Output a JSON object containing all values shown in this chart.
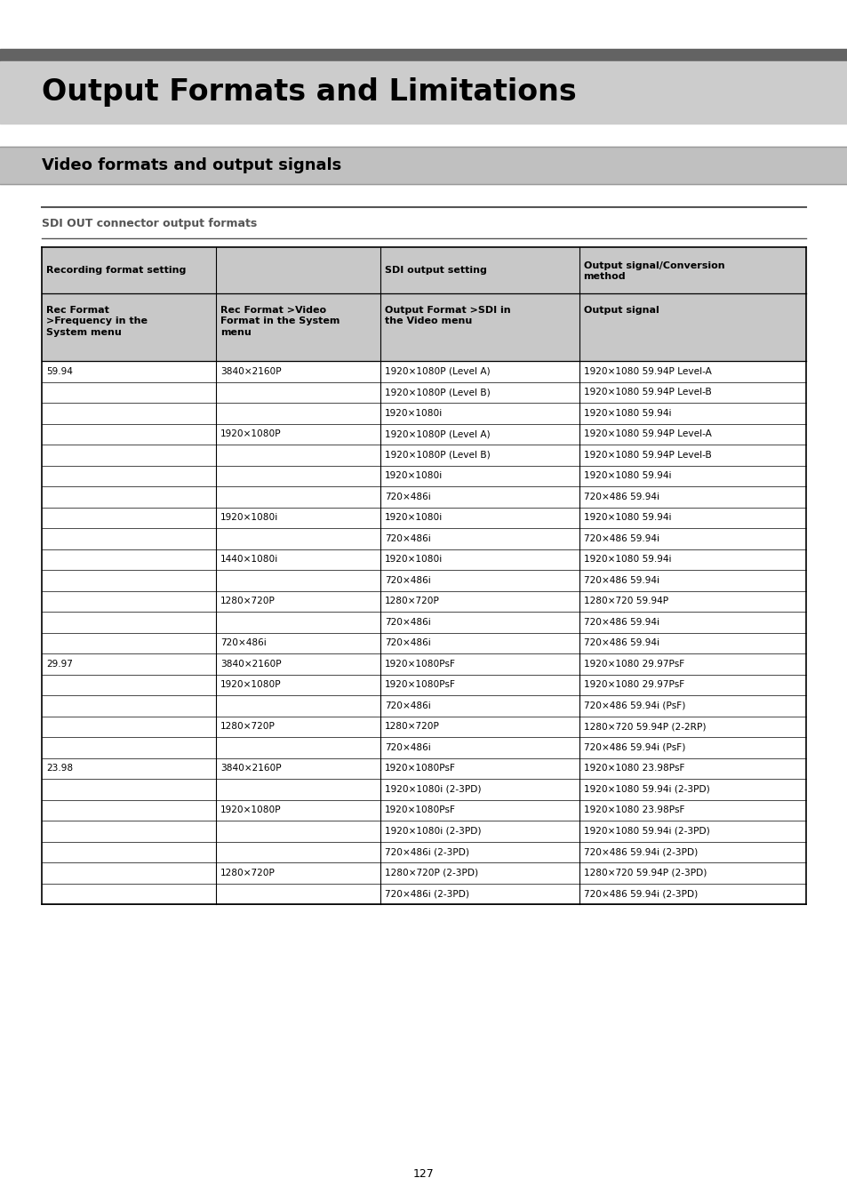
{
  "page_bg": "#ffffff",
  "title_top_bar_color": "#636363",
  "title_bar_bg": "#cccccc",
  "title_text": "Output Formats and Limitations",
  "title_fontsize": 24,
  "section_bar_bg": "#c0c0c0",
  "section_text": "Video formats and output signals",
  "section_fontsize": 13,
  "subsection_text": "SDI OUT connector output formats",
  "subsection_fontsize": 9,
  "table_header_bg": "#c8c8c8",
  "table_header1_row1": "Recording format setting",
  "table_header3_row1": "SDI output setting",
  "table_header4_row1": "Output signal/Conversion\nmethod",
  "table_header1_row2": "Rec Format\n>Frequency in the\nSystem menu",
  "table_header2_row2": "Rec Format >Video\nFormat in the System\nmenu",
  "table_header3_row2": "Output Format >SDI in\nthe Video menu",
  "table_header4_row2": "Output signal",
  "rows": [
    [
      "59.94",
      "3840×2160P",
      "1920×1080P (Level A)",
      "1920×1080 59.94P Level-A"
    ],
    [
      "",
      "",
      "1920×1080P (Level B)",
      "1920×1080 59.94P Level-B"
    ],
    [
      "",
      "",
      "1920×1080i",
      "1920×1080 59.94i"
    ],
    [
      "",
      "1920×1080P",
      "1920×1080P (Level A)",
      "1920×1080 59.94P Level-A"
    ],
    [
      "",
      "",
      "1920×1080P (Level B)",
      "1920×1080 59.94P Level-B"
    ],
    [
      "",
      "",
      "1920×1080i",
      "1920×1080 59.94i"
    ],
    [
      "",
      "",
      "720×486i",
      "720×486 59.94i"
    ],
    [
      "",
      "1920×1080i",
      "1920×1080i",
      "1920×1080 59.94i"
    ],
    [
      "",
      "",
      "720×486i",
      "720×486 59.94i"
    ],
    [
      "",
      "1440×1080i",
      "1920×1080i",
      "1920×1080 59.94i"
    ],
    [
      "",
      "",
      "720×486i",
      "720×486 59.94i"
    ],
    [
      "",
      "1280×720P",
      "1280×720P",
      "1280×720 59.94P"
    ],
    [
      "",
      "",
      "720×486i",
      "720×486 59.94i"
    ],
    [
      "",
      "720×486i",
      "720×486i",
      "720×486 59.94i"
    ],
    [
      "29.97",
      "3840×2160P",
      "1920×1080PsF",
      "1920×1080 29.97PsF"
    ],
    [
      "",
      "1920×1080P",
      "1920×1080PsF",
      "1920×1080 29.97PsF"
    ],
    [
      "",
      "",
      "720×486i",
      "720×486 59.94i (PsF)"
    ],
    [
      "",
      "1280×720P",
      "1280×720P",
      "1280×720 59.94P (2-2RP)"
    ],
    [
      "",
      "",
      "720×486i",
      "720×486 59.94i (PsF)"
    ],
    [
      "23.98",
      "3840×2160P",
      "1920×1080PsF",
      "1920×1080 23.98PsF"
    ],
    [
      "",
      "",
      "1920×1080i (2-3PD)",
      "1920×1080 59.94i (2-3PD)"
    ],
    [
      "",
      "1920×1080P",
      "1920×1080PsF",
      "1920×1080 23.98PsF"
    ],
    [
      "",
      "",
      "1920×1080i (2-3PD)",
      "1920×1080 59.94i (2-3PD)"
    ],
    [
      "",
      "",
      "720×486i (2-3PD)",
      "720×486 59.94i (2-3PD)"
    ],
    [
      "",
      "1280×720P",
      "1280×720P (2-3PD)",
      "1280×720 59.94P (2-3PD)"
    ],
    [
      "",
      "",
      "720×486i (2-3PD)",
      "720×486 59.94i (2-3PD)"
    ]
  ],
  "page_number": "127"
}
